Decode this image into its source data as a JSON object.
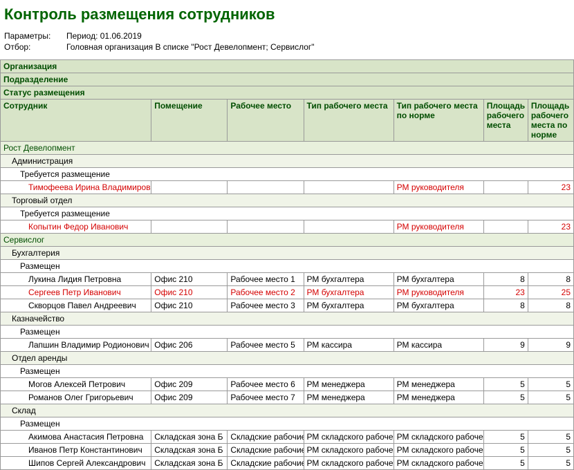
{
  "title": "Контроль размещения сотрудников",
  "params": {
    "label_params": "Параметры:",
    "period": "Период: 01.06.2019",
    "label_filter": "Отбор:",
    "filter": "Головная организация В списке \"Рост Девелопмент; Сервислог\""
  },
  "head": {
    "org": "Организация",
    "dept": "Подразделение",
    "status": "Статус размещения",
    "employee": "Сотрудник",
    "room": "Помещение",
    "workplace": "Рабочее место",
    "worktype": "Тип рабочего места",
    "worktype_norm": "Тип рабочего места по норме",
    "area": "Площадь рабочего места",
    "area_norm": "Площадь рабочего места по норме"
  },
  "orgs": [
    {
      "name": "Рост Девелопмент",
      "depts": [
        {
          "name": "Администрация",
          "statuses": [
            {
              "name": "Требуется размещение",
              "rows": [
                {
                  "emp": "Тимофеева Ирина Владимировна",
                  "room": "",
                  "wp": "",
                  "wt": "",
                  "wtnorm": "РМ руководителя",
                  "area": "",
                  "areanorm": "23",
                  "red": true
                }
              ]
            }
          ]
        },
        {
          "name": "Торговый отдел",
          "statuses": [
            {
              "name": "Требуется размещение",
              "rows": [
                {
                  "emp": "Копытин Федор Иванович",
                  "room": "",
                  "wp": "",
                  "wt": "",
                  "wtnorm": "РМ руководителя",
                  "area": "",
                  "areanorm": "23",
                  "red": true
                }
              ]
            }
          ]
        }
      ]
    },
    {
      "name": "Сервислог",
      "depts": [
        {
          "name": "Бухгалтерия",
          "statuses": [
            {
              "name": "Размещен",
              "rows": [
                {
                  "emp": "Лукина Лидия Петровна",
                  "room": "Офис 210",
                  "wp": "Рабочее место 1",
                  "wt": "РМ бухгалтера",
                  "wtnorm": "РМ бухгалтера",
                  "area": "8",
                  "areanorm": "8",
                  "red": false
                },
                {
                  "emp": "Сергеев Петр Иванович",
                  "room": "Офис 210",
                  "wp": "Рабочее место 2",
                  "wt": "РМ бухгалтера",
                  "wtnorm": "РМ руководителя",
                  "area": "23",
                  "areanorm": "25",
                  "red": true
                },
                {
                  "emp": "Скворцов Павел Андреевич",
                  "room": "Офис 210",
                  "wp": "Рабочее место 3",
                  "wt": "РМ бухгалтера",
                  "wtnorm": "РМ бухгалтера",
                  "area": "8",
                  "areanorm": "8",
                  "red": false
                }
              ]
            }
          ]
        },
        {
          "name": "Казначейство",
          "statuses": [
            {
              "name": "Размещен",
              "rows": [
                {
                  "emp": "Лапшин Владимир Родионович",
                  "room": "Офис 206",
                  "wp": "Рабочее место 5",
                  "wt": "РМ кассира",
                  "wtnorm": "РМ кассира",
                  "area": "9",
                  "areanorm": "9",
                  "red": false
                }
              ]
            }
          ]
        },
        {
          "name": "Отдел аренды",
          "statuses": [
            {
              "name": "Размещен",
              "rows": [
                {
                  "emp": "Могов Алексей Петрович",
                  "room": "Офис 209",
                  "wp": "Рабочее место 6",
                  "wt": "РМ менеджера",
                  "wtnorm": "РМ менеджера",
                  "area": "5",
                  "areanorm": "5",
                  "red": false
                },
                {
                  "emp": "Романов Олег Григорьевич",
                  "room": "Офис 209",
                  "wp": "Рабочее место 7",
                  "wt": "РМ менеджера",
                  "wtnorm": "РМ менеджера",
                  "area": "5",
                  "areanorm": "5",
                  "red": false
                }
              ]
            }
          ]
        },
        {
          "name": "Склад",
          "statuses": [
            {
              "name": "Размещен",
              "rows": [
                {
                  "emp": "Акимова Анастасия Петровна",
                  "room": "Складская зона Б",
                  "wp": "Складские рабочие",
                  "wt": "РМ складского рабочего",
                  "wtnorm": "РМ складского рабочего",
                  "area": "5",
                  "areanorm": "5",
                  "red": false
                },
                {
                  "emp": "Иванов  Петр  Константинович",
                  "room": "Складская зона Б",
                  "wp": "Складские рабочие",
                  "wt": "РМ складского рабочего",
                  "wtnorm": "РМ складского рабочего",
                  "area": "5",
                  "areanorm": "5",
                  "red": false
                },
                {
                  "emp": "Шипов Сергей Александрович",
                  "room": "Складская зона Б",
                  "wp": "Складские рабочие",
                  "wt": "РМ складского рабочего",
                  "wtnorm": "РМ складского рабочего",
                  "area": "5",
                  "areanorm": "5",
                  "red": false
                }
              ]
            }
          ]
        }
      ]
    }
  ]
}
